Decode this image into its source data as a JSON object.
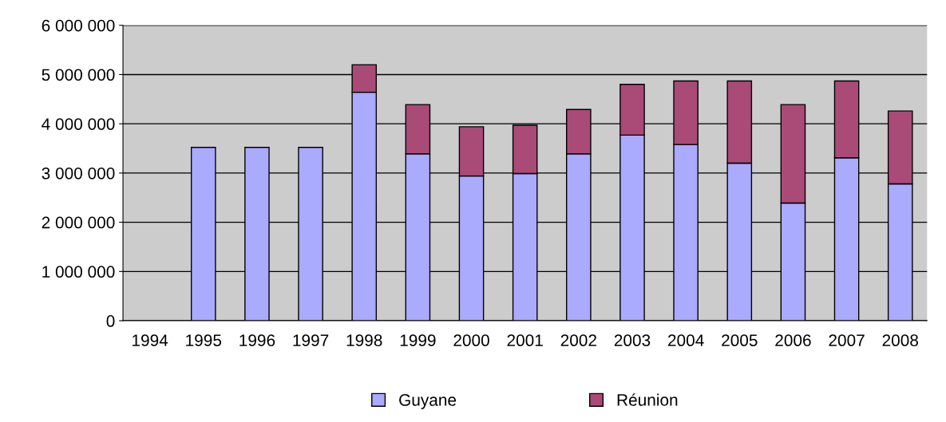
{
  "chart_data": {
    "type": "bar",
    "stacked": true,
    "categories": [
      "1994",
      "1995",
      "1996",
      "1997",
      "1998",
      "1999",
      "2000",
      "2001",
      "2002",
      "2003",
      "2004",
      "2005",
      "2006",
      "2007",
      "2008"
    ],
    "series": [
      {
        "name": "Guyane",
        "color": "#aaaaff",
        "values": [
          null,
          3520000,
          3520000,
          3520000,
          4640000,
          3390000,
          2940000,
          2990000,
          3390000,
          3770000,
          3580000,
          3200000,
          2390000,
          3310000,
          2780000
        ]
      },
      {
        "name": "Réunion",
        "color": "#aa4a77",
        "values": [
          null,
          null,
          null,
          null,
          560000,
          1000000,
          1000000,
          980000,
          900000,
          1030000,
          1290000,
          1670000,
          2000000,
          1560000,
          1480000
        ]
      }
    ],
    "ylim": [
      0,
      6000000
    ],
    "yticks": [
      {
        "value": 0,
        "label": "0"
      },
      {
        "value": 1000000,
        "label": "1 000 000"
      },
      {
        "value": 2000000,
        "label": "2 000 000"
      },
      {
        "value": 3000000,
        "label": "3 000 000"
      },
      {
        "value": 4000000,
        "label": "4 000 000"
      },
      {
        "value": 5000000,
        "label": "5 000 000"
      },
      {
        "value": 6000000,
        "label": "6 000 000"
      }
    ],
    "grid": "y",
    "legend": "bottom"
  }
}
